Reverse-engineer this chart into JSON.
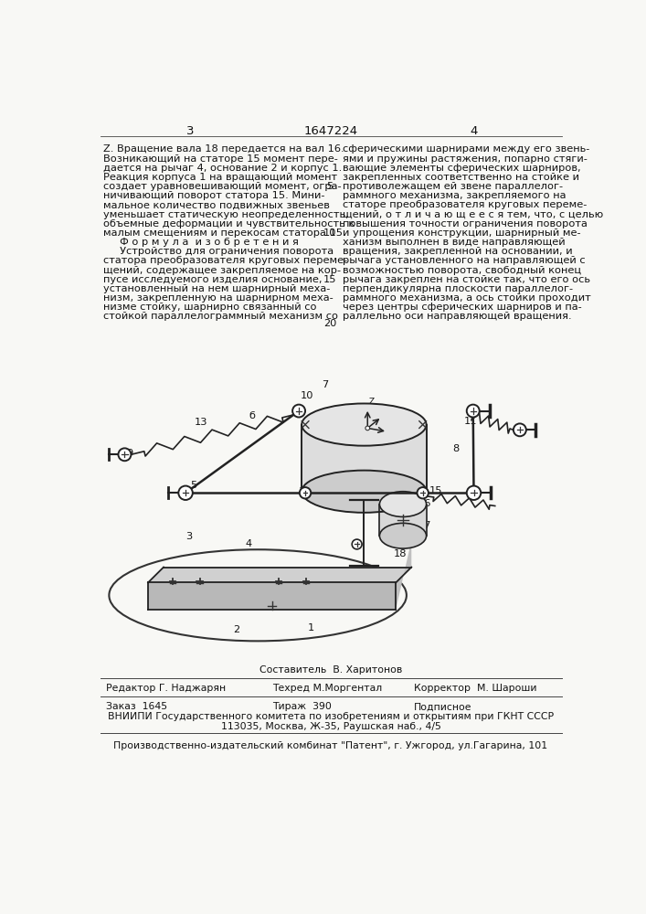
{
  "page_numbers": [
    "3",
    "1647224",
    "4"
  ],
  "left_col_text": [
    "Z. Вращение вала 18 передается на вал 16.",
    "Возникающий на статоре 15 момент пере-",
    "дается на рычаг 4, основание 2 и корпус 1.",
    "Реакция корпуса 1 на вращающий момент",
    "создает уравновешивающий момент, огра-",
    "ничивающий поворот статора 15. Мини-",
    "мальное количество подвижных звеньев",
    "уменьшает статическую неопределенность,",
    "объемные деформации и чувствительность к",
    "малым смещениям и перекосам статора 15.",
    "     Ф о р м у л а  и з о б р е т е н и я",
    "     Устройство для ограничения поворота",
    "статора преобразователя круговых переме-",
    "щений, содержащее закрепляемое на кор-",
    "пусе исследуемого изделия основание,",
    "установленный на нем шарнирный меха-",
    "низм, закрепленную на шарнирном меха-",
    "низме стойку, шарнирно связанный со",
    "стойкой параллелограммный механизм со"
  ],
  "right_col_text": [
    "сферическими шарнирами между его звень-",
    "ями и пружины растяжения, попарно стяги-",
    "вающие элементы сферических шарниров,",
    "закрепленных соответственно на стойке и",
    "противолежащем ей звене параллелог-",
    "раммного механизма, закрепляемого на",
    "статоре преобразователя круговых переме-",
    "щений, о т л и ч а ю щ е е с я тем, что, с целью",
    "повышения точности ограничения поворота",
    "и упрощения конструкции, шарнирный ме-",
    "ханизм выполнен в виде направляющей",
    "вращения, закрепленной на основании, и",
    "рычага установленного на направляющей с",
    "возможностью поворота, свободный конец",
    "рычага закреплен на стойке так, что его ось",
    "перпендикулярна плоскости параллелог-",
    "раммного механизма, а ось стойки проходит",
    "через центры сферических шарниров и па-",
    "раллельно оси направляющей вращения."
  ],
  "составитель": "Составитель  В. Харитонов",
  "editor": "Редактор Г. Наджарян",
  "tehred": "Техред М.Моргентал",
  "korrektor": "Корректор  М. Шароши",
  "zakaz": "Заказ  1645",
  "tirazh": "Тираж  390",
  "podpisnoe": "Подписное",
  "vniiipi_line1": "ВНИИПИ Государственного комитета по изобретениям и открытиям при ГКНТ СССР",
  "vniiipi_line2": "113035, Москва, Ж-35, Раушская наб., 4/5",
  "production_line": "Производственно-издательский комбинат \"Патент\", г. Ужгород, ул.Гагарина, 101",
  "background_color": "#f8f8f5",
  "text_color": "#111111",
  "font_size_main": 8.2,
  "font_size_footer": 7.8
}
